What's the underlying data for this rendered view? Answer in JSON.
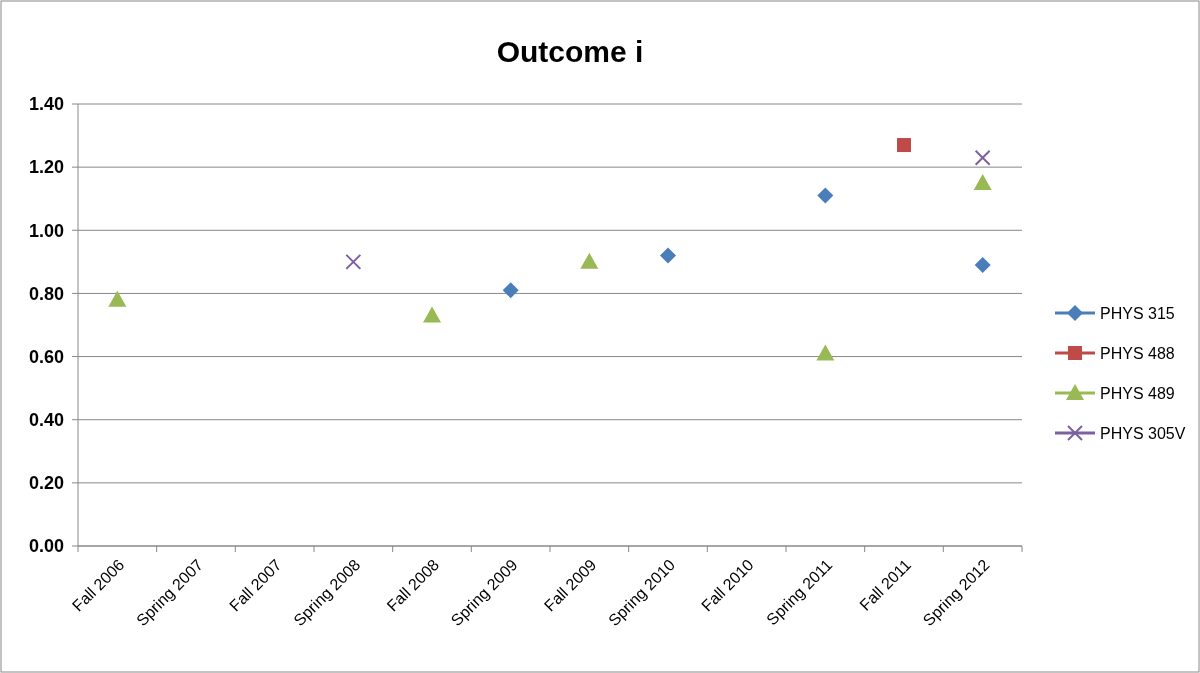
{
  "chart_data": {
    "type": "scatter",
    "title": "Outcome i",
    "categories": [
      "Fall 2006",
      "Spring 2007",
      "Fall 2007",
      "Spring 2008",
      "Fall 2008",
      "Spring 2009",
      "Fall 2009",
      "Spring 2010",
      "Fall 2010",
      "Spring 2011",
      "Fall 2011",
      "Spring 2012"
    ],
    "series": [
      {
        "name": "PHYS 315",
        "color": "#4a7ebb",
        "marker": "diamond",
        "values": [
          null,
          null,
          null,
          null,
          null,
          0.81,
          null,
          0.92,
          null,
          1.11,
          null,
          0.89
        ]
      },
      {
        "name": "PHYS 488",
        "color": "#be4b48",
        "marker": "square",
        "values": [
          null,
          null,
          null,
          null,
          null,
          null,
          null,
          null,
          null,
          null,
          1.27,
          null
        ]
      },
      {
        "name": "PHYS 489",
        "color": "#98b954",
        "marker": "triangle",
        "values": [
          0.78,
          null,
          null,
          null,
          0.73,
          null,
          0.9,
          null,
          null,
          0.61,
          null,
          1.15
        ]
      },
      {
        "name": "PHYS 305V",
        "color": "#7d60a0",
        "marker": "cross",
        "values": [
          null,
          null,
          null,
          0.9,
          null,
          null,
          null,
          null,
          null,
          null,
          null,
          1.23
        ]
      }
    ],
    "ylim": [
      0,
      1.4
    ],
    "yticks": [
      {
        "value": 0,
        "label": "0.00"
      },
      {
        "value": 0.2,
        "label": "0.20"
      },
      {
        "value": 0.4,
        "label": "0.40"
      },
      {
        "value": 0.6,
        "label": "0.60"
      },
      {
        "value": 0.8,
        "label": "0.80"
      },
      {
        "value": 1,
        "label": "1.00"
      },
      {
        "value": 1.2,
        "label": "1.20"
      },
      {
        "value": 1.4,
        "label": "1.40"
      }
    ],
    "grid": "y",
    "legend": "right"
  }
}
